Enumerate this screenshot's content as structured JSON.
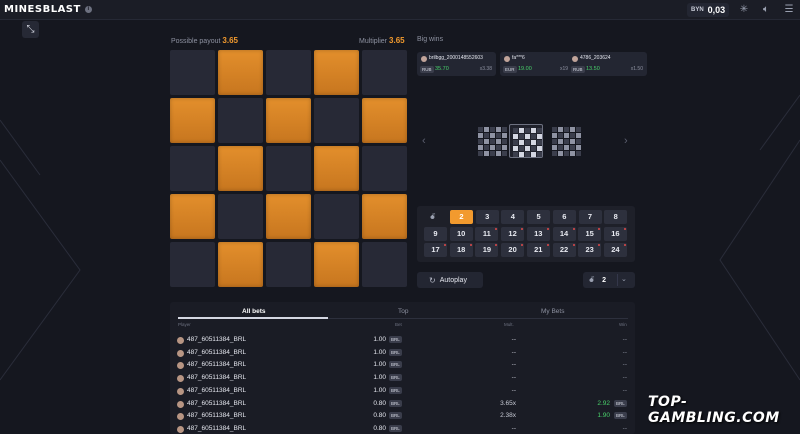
{
  "app": {
    "logo_part1": "MINES",
    "logo_part2": "BLAST"
  },
  "header": {
    "currency": "BYN",
    "balance": "0,03"
  },
  "icons": {
    "info": "info-icon",
    "settings": "sparkle-settings-icon",
    "sound": "speaker-icon",
    "menu": "hamburger-menu-icon",
    "collapse": "collapse-arrows-icon",
    "bomb": "bomb-icon",
    "autoplay": "autoplay-icon",
    "chevron": "chevron-down-icon"
  },
  "game": {
    "payout_label": "Possible payout",
    "payout_value": "3.65",
    "multiplier_label": "Multiplier",
    "multiplier_value": "3.65",
    "grid": [
      [
        0,
        1,
        0,
        1,
        0
      ],
      [
        1,
        0,
        1,
        0,
        1
      ],
      [
        0,
        1,
        0,
        1,
        0
      ],
      [
        1,
        0,
        1,
        0,
        1
      ],
      [
        0,
        1,
        0,
        1,
        0
      ]
    ]
  },
  "big_wins": {
    "title": "Big wins",
    "cards": [
      {
        "name": "brilbgg_2000148552603",
        "currency": "RUB",
        "amount": "35.70",
        "mult": "x3.38"
      },
      {
        "name": "fa***6",
        "currency": "EUR",
        "amount": "19.00",
        "mult": "x19.00"
      },
      {
        "name": "4786_203624",
        "currency": "RUB",
        "amount": "13.50",
        "mult": "x1.50"
      }
    ]
  },
  "mines": {
    "selected": "2",
    "row1": [
      "2",
      "3",
      "4",
      "5",
      "6",
      "7",
      "8"
    ],
    "row2": [
      "9",
      "10",
      "11",
      "12",
      "13",
      "14",
      "15",
      "16"
    ],
    "row3": [
      "17",
      "18",
      "19",
      "20",
      "21",
      "22",
      "23",
      "24"
    ]
  },
  "controls": {
    "autoplay_label": "Autoplay",
    "mines_count": "2"
  },
  "bets": {
    "tabs": [
      "All bets",
      "Top",
      "My Bets"
    ],
    "columns": [
      "Player",
      "Bet",
      "Mult.",
      "Win"
    ],
    "rows": [
      {
        "player": "487_60511384_BRL",
        "bet": "1.00",
        "currency": "BRL",
        "mult": "--",
        "win": "--",
        "win_currency": ""
      },
      {
        "player": "487_60511384_BRL",
        "bet": "1.00",
        "currency": "BRL",
        "mult": "--",
        "win": "--",
        "win_currency": ""
      },
      {
        "player": "487_60511384_BRL",
        "bet": "1.00",
        "currency": "BRL",
        "mult": "--",
        "win": "--",
        "win_currency": ""
      },
      {
        "player": "487_60511384_BRL",
        "bet": "1.00",
        "currency": "BRL",
        "mult": "--",
        "win": "--",
        "win_currency": ""
      },
      {
        "player": "487_60511384_BRL",
        "bet": "1.00",
        "currency": "BRL",
        "mult": "--",
        "win": "--",
        "win_currency": ""
      },
      {
        "player": "487_60511384_BRL",
        "bet": "0.80",
        "currency": "BRL",
        "mult": "3.65x",
        "win": "2.92",
        "win_currency": "BRL"
      },
      {
        "player": "487_60511384_BRL",
        "bet": "0.80",
        "currency": "BRL",
        "mult": "2.38x",
        "win": "1.90",
        "win_currency": "BRL"
      },
      {
        "player": "487_60511384_BRL",
        "bet": "0.80",
        "currency": "BRL",
        "mult": "--",
        "win": "--",
        "win_currency": ""
      }
    ]
  },
  "watermark": "TOP-GAMBLING.COM"
}
